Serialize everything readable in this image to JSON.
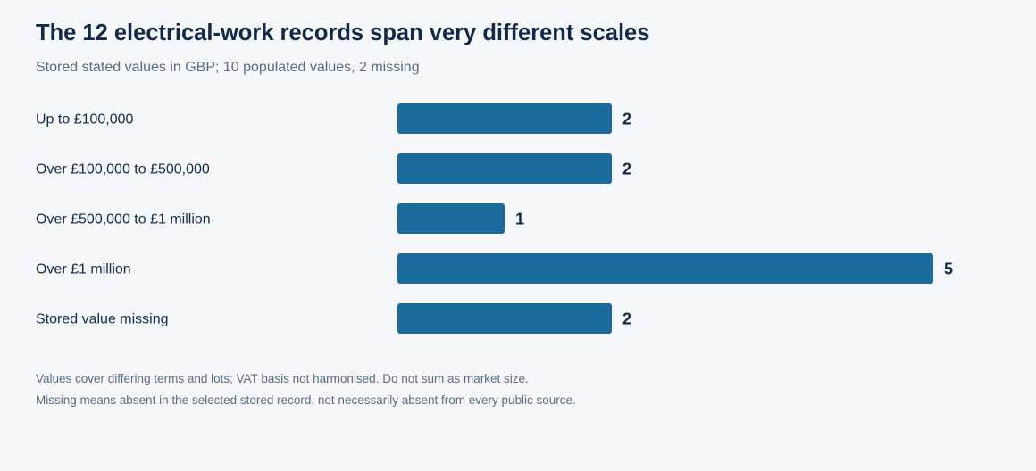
{
  "colors": {
    "bar": "#1a6b9c",
    "text": "#13294b",
    "muted": "#5a6b82",
    "background": "#f5f7fb"
  },
  "chart_data": {
    "type": "bar",
    "orientation": "horizontal",
    "title": "The 12 electrical-work records span very different scales",
    "subtitle": "Stored stated values in GBP; 10 populated values, 2 missing",
    "categories": [
      "Up to £100,000",
      "Over £100,000 to £500,000",
      "Over £500,000 to £1 million",
      "Over £1 million",
      "Stored value missing"
    ],
    "values": [
      2,
      2,
      1,
      5,
      2
    ],
    "xlim": [
      0,
      5
    ],
    "grid": false,
    "xlabel": "",
    "ylabel": ""
  },
  "notes": {
    "line1": "Values cover differing terms and lots; VAT basis not harmonised. Do not sum as market size.",
    "line2": "Missing means absent in the selected stored record, not necessarily absent from every public source."
  }
}
